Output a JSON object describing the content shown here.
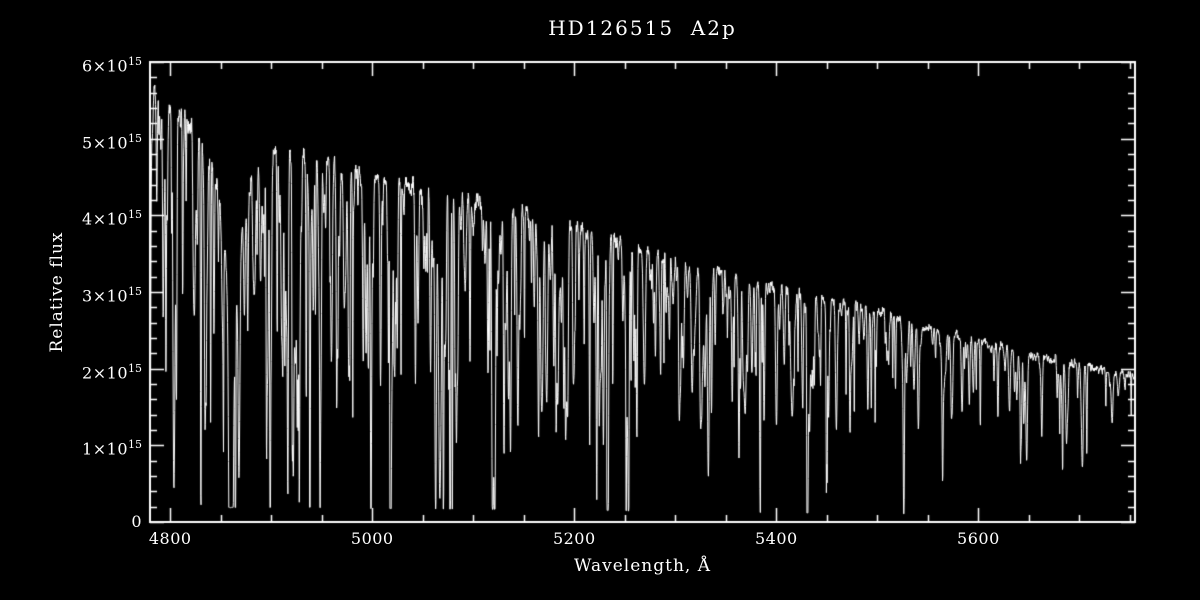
{
  "chart_data": {
    "type": "line",
    "title": "HD126515  A2p",
    "xlabel": "Wavelength, Å",
    "ylabel": "Relative flux",
    "xlim": [
      4780,
      5755
    ],
    "ylim": [
      0,
      6000000000000000.0
    ],
    "background_color": "#000000",
    "line_color": "#ffffff",
    "axis_color": "#ffffff",
    "grid": false,
    "legend": false,
    "x_ticks": [
      {
        "value": 4800,
        "label": "4800"
      },
      {
        "value": 5000,
        "label": "5000"
      },
      {
        "value": 5200,
        "label": "5200"
      },
      {
        "value": 5400,
        "label": "5400"
      },
      {
        "value": 5600,
        "label": "5600"
      }
    ],
    "x_minor_step": 50,
    "y_ticks": [
      {
        "value": 0,
        "base": "0",
        "sup": ""
      },
      {
        "value": 1000000000000000.0,
        "base": "1×10",
        "sup": "15"
      },
      {
        "value": 2000000000000000.0,
        "base": "2×10",
        "sup": "15"
      },
      {
        "value": 3000000000000000.0,
        "base": "3×10",
        "sup": "15"
      },
      {
        "value": 4000000000000000.0,
        "base": "4×10",
        "sup": "15"
      },
      {
        "value": 5000000000000000.0,
        "base": "5×10",
        "sup": "15"
      },
      {
        "value": 6000000000000000.0,
        "base": "6×10",
        "sup": "15"
      }
    ],
    "y_minor_step": 200000000000000.0,
    "continuum": {
      "x": [
        4780,
        4800,
        4810,
        4825,
        4840,
        4855,
        4875,
        4890,
        4910,
        4930,
        4950,
        5000,
        5050,
        5100,
        5150,
        5200,
        5250,
        5300,
        5350,
        5400,
        5450,
        5500,
        5550,
        5600,
        5650,
        5700,
        5755
      ],
      "y": [
        5700000000000000.0,
        5450000000000000.0,
        5300000000000000.0,
        5150000000000000.0,
        4900000000000000.0,
        4720000000000000.0,
        4650000000000000.0,
        4720000000000000.0,
        4800000000000000.0,
        4780000000000000.0,
        4700000000000000.0,
        4500000000000000.0,
        4350000000000000.0,
        4200000000000000.0,
        4050000000000000.0,
        3850000000000000.0,
        3650000000000000.0,
        3450000000000000.0,
        3250000000000000.0,
        3050000000000000.0,
        2900000000000000.0,
        2750000000000000.0,
        2550000000000000.0,
        2350000000000000.0,
        2200000000000000.0,
        2050000000000000.0,
        1900000000000000.0
      ]
    },
    "strong_lines": [
      {
        "center": 4861.3,
        "components": [
          {
            "depth": 0.3,
            "sigma": 10.0
          },
          {
            "depth": 0.28,
            "sigma": 3.2
          },
          {
            "depth": 0.3,
            "sigma": 1.3
          }
        ]
      },
      {
        "center": 4824.1,
        "components": [
          {
            "depth": 0.45,
            "sigma": 0.8
          }
        ]
      },
      {
        "center": 4923.9,
        "components": [
          {
            "depth": 0.55,
            "sigma": 1.0
          }
        ]
      },
      {
        "center": 5018.4,
        "components": [
          {
            "depth": 0.58,
            "sigma": 1.0
          }
        ]
      },
      {
        "center": 5167.3,
        "components": [
          {
            "depth": 0.52,
            "sigma": 0.9
          }
        ]
      },
      {
        "center": 5172.7,
        "components": [
          {
            "depth": 0.6,
            "sigma": 1.0
          }
        ]
      },
      {
        "center": 5183.6,
        "components": [
          {
            "depth": 0.62,
            "sigma": 1.0
          }
        ]
      },
      {
        "center": 5269.5,
        "components": [
          {
            "depth": 0.48,
            "sigma": 0.9
          }
        ]
      },
      {
        "center": 5316.6,
        "components": [
          {
            "depth": 0.5,
            "sigma": 0.9
          }
        ]
      }
    ],
    "random_lines": {
      "seed": 1337,
      "count": 550,
      "depth_max": 0.7,
      "depth_power": 1.5,
      "sigma_min": 0.25,
      "sigma_max": 0.85,
      "red_depth_falloff": 0.3,
      "red_density_falloff": 0.55,
      "density_break_wavelength": 5350
    },
    "noise": {
      "seed": 9001,
      "coarse": 0.02,
      "fine": 0.013
    }
  }
}
